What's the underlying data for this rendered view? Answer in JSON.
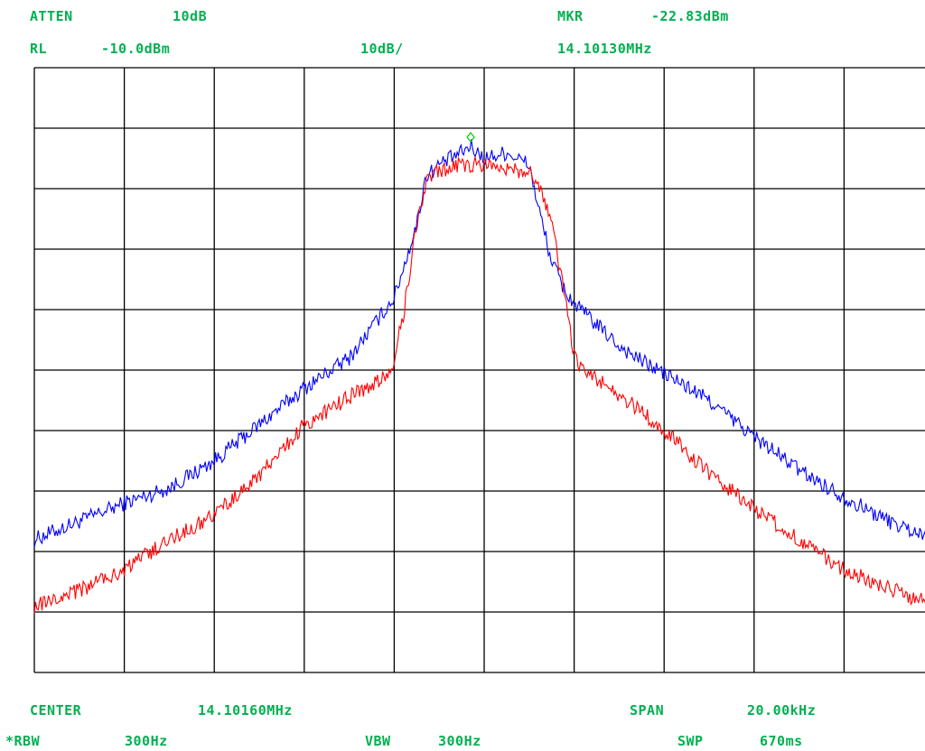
{
  "header": {
    "atten_label": "ATTEN",
    "atten_value": "10dB",
    "mkr_label": "MKR",
    "mkr_value": "-22.83dBm",
    "rl_label": "RL",
    "rl_value": "-10.0dBm",
    "scale": "10dB/",
    "mkr_freq": "14.10130MHz"
  },
  "footer": {
    "center_label": "CENTER",
    "center_value": "14.10160MHz",
    "span_label": "SPAN",
    "span_value": "20.00kHz",
    "rbw_label": "*RBW",
    "rbw_value": "300Hz",
    "vbw_label": "VBW",
    "vbw_value": "300Hz",
    "swp_label": "SWP",
    "swp_value": "670ms"
  },
  "colors": {
    "text": "#00b050",
    "grid": "#000000",
    "trace_a": "#0000ff",
    "trace_b": "#ff0000",
    "marker": "#00cc00"
  },
  "chart_data": {
    "type": "line",
    "x_unit": "kHz offset from 14.10160MHz center",
    "y_unit": "dBm",
    "xlim": [
      -10,
      10
    ],
    "ylim": [
      -110,
      -10
    ],
    "grid": true,
    "divisions": {
      "x": 10,
      "y": 10
    },
    "marker": {
      "x": -0.3,
      "y": -22.83,
      "symbol": "diamond"
    },
    "series": [
      {
        "color": "#0000ff",
        "x": [
          -10,
          -9,
          -8,
          -7,
          -6,
          -5,
          -4,
          -3,
          -2,
          -1.5,
          -1.3,
          -1,
          -0.5,
          -0.3,
          0,
          0.5,
          1,
          1.2,
          1.5,
          1.8,
          2,
          2.5,
          3,
          3.5,
          4,
          5,
          6,
          7,
          8,
          9,
          10
        ],
        "y": [
          -88,
          -85,
          -82,
          -79.5,
          -75,
          -69,
          -63,
          -58,
          -48,
          -36,
          -28,
          -26,
          -24,
          -23,
          -25,
          -24,
          -26,
          -33,
          -42,
          -47,
          -49,
          -52.5,
          -56,
          -58.5,
          -60.5,
          -65,
          -71,
          -76.5,
          -81,
          -85,
          -88
        ]
      },
      {
        "color": "#ff0000",
        "x": [
          -10,
          -9,
          -8,
          -7,
          -6,
          -5,
          -4,
          -3,
          -2.1,
          -2,
          -1.8,
          -1.5,
          -1.3,
          -1,
          -0.5,
          0,
          0.5,
          1,
          1.2,
          1.5,
          1.8,
          2,
          2.5,
          3,
          3.5,
          4,
          5,
          6,
          7,
          8,
          9,
          10
        ],
        "y": [
          -99,
          -96.5,
          -93,
          -88,
          -84,
          -77.5,
          -69,
          -64.5,
          -60.5,
          -58,
          -51,
          -36,
          -29,
          -27,
          -26,
          -26,
          -27,
          -27,
          -29,
          -36,
          -48,
          -58,
          -61.5,
          -64,
          -67,
          -70,
          -77,
          -83,
          -88,
          -93,
          -96,
          -99
        ]
      }
    ]
  }
}
